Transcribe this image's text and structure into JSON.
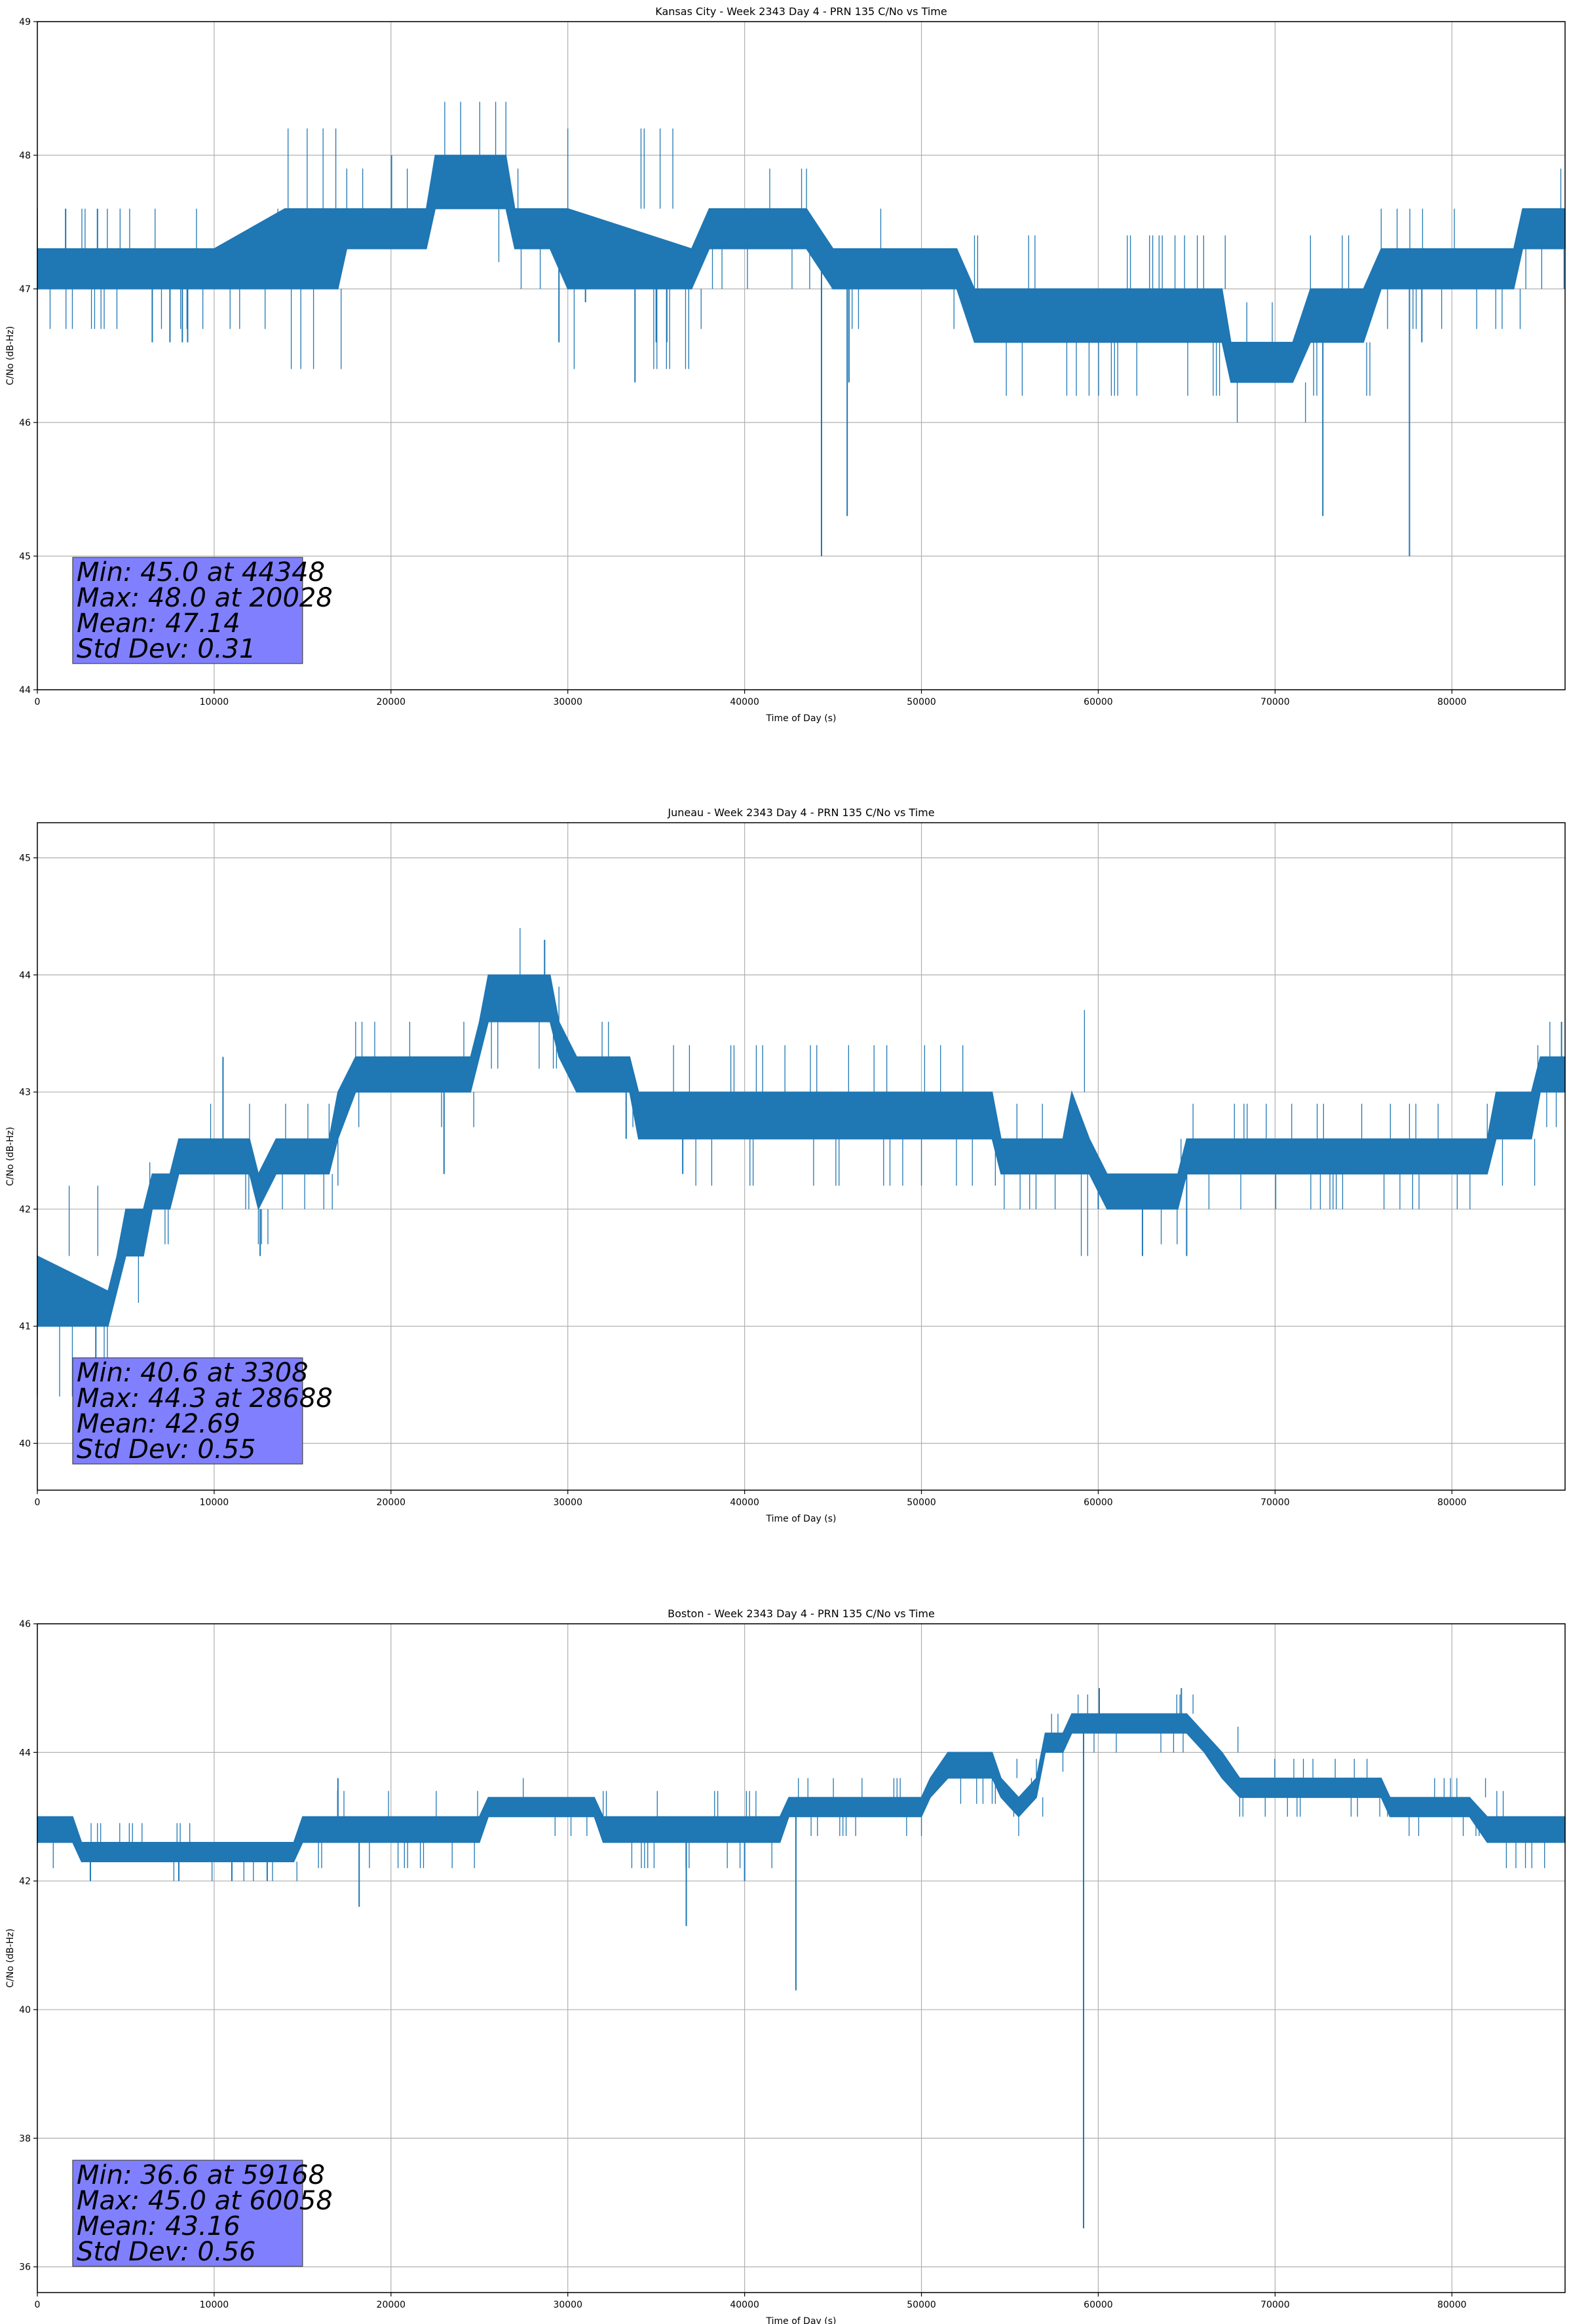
{
  "colors": {
    "series": "#1f77b4",
    "stats_box": "#8080ff",
    "grid": "#b0b0b0"
  },
  "chart_data": [
    {
      "type": "line",
      "title": "Kansas City - Week 2343 Day 4 - PRN 135 C/No vs Time",
      "xlabel": "Time of Day (s)",
      "ylabel": "C/No (dB-Hz)",
      "xlim": [
        0,
        86400
      ],
      "ylim": [
        44,
        49
      ],
      "xticks": [
        0,
        10000,
        20000,
        30000,
        40000,
        50000,
        60000,
        70000,
        80000
      ],
      "yticks": [
        44,
        45,
        46,
        47,
        48,
        49
      ],
      "grid": true,
      "stats": [
        "Min: 45.0 at 44348",
        "Max: 48.0 at 20028",
        "Mean: 47.14",
        "Std Dev: 0.31"
      ],
      "series": [
        {
          "band": [
            {
              "x": 0,
              "lo": 47.0,
              "hi": 47.3
            },
            {
              "x": 10000,
              "lo": 47.0,
              "hi": 47.3
            },
            {
              "x": 14000,
              "lo": 47.0,
              "hi": 47.6
            },
            {
              "x": 17000,
              "lo": 47.0,
              "hi": 47.6
            },
            {
              "x": 17500,
              "lo": 47.3,
              "hi": 47.6
            },
            {
              "x": 22000,
              "lo": 47.3,
              "hi": 47.6
            },
            {
              "x": 22500,
              "lo": 47.6,
              "hi": 48.0
            },
            {
              "x": 26500,
              "lo": 47.6,
              "hi": 48.0
            },
            {
              "x": 27000,
              "lo": 47.3,
              "hi": 47.6
            },
            {
              "x": 29000,
              "lo": 47.3,
              "hi": 47.6
            },
            {
              "x": 30000,
              "lo": 47.0,
              "hi": 47.6
            },
            {
              "x": 37000,
              "lo": 47.0,
              "hi": 47.3
            },
            {
              "x": 38000,
              "lo": 47.3,
              "hi": 47.6
            },
            {
              "x": 43500,
              "lo": 47.3,
              "hi": 47.6
            },
            {
              "x": 45000,
              "lo": 47.0,
              "hi": 47.3
            },
            {
              "x": 52000,
              "lo": 47.0,
              "hi": 47.3
            },
            {
              "x": 53000,
              "lo": 46.6,
              "hi": 47.0
            },
            {
              "x": 67000,
              "lo": 46.6,
              "hi": 47.0
            },
            {
              "x": 67500,
              "lo": 46.3,
              "hi": 46.6
            },
            {
              "x": 71000,
              "lo": 46.3,
              "hi": 46.6
            },
            {
              "x": 72000,
              "lo": 46.6,
              "hi": 47.0
            },
            {
              "x": 75000,
              "lo": 46.6,
              "hi": 47.0
            },
            {
              "x": 76000,
              "lo": 47.0,
              "hi": 47.3
            },
            {
              "x": 83500,
              "lo": 47.0,
              "hi": 47.3
            },
            {
              "x": 84000,
              "lo": 47.3,
              "hi": 47.6
            },
            {
              "x": 86400,
              "lo": 47.3,
              "hi": 47.6
            }
          ],
          "spikes": [
            {
              "x": 1600,
              "y": 47.6
            },
            {
              "x": 3400,
              "y": 47.6
            },
            {
              "x": 6500,
              "y": 46.6
            },
            {
              "x": 7500,
              "y": 46.6
            },
            {
              "x": 8200,
              "y": 46.6
            },
            {
              "x": 8500,
              "y": 46.6
            },
            {
              "x": 20028,
              "y": 48.0
            },
            {
              "x": 29500,
              "y": 46.6
            },
            {
              "x": 31000,
              "y": 46.9
            },
            {
              "x": 33800,
              "y": 46.3
            },
            {
              "x": 35000,
              "y": 46.6
            },
            {
              "x": 35600,
              "y": 46.6
            },
            {
              "x": 44348,
              "y": 45.0
            },
            {
              "x": 45800,
              "y": 45.3
            },
            {
              "x": 45900,
              "y": 46.3
            },
            {
              "x": 69000,
              "y": 46.6
            },
            {
              "x": 72700,
              "y": 45.3
            },
            {
              "x": 77600,
              "y": 45.0
            },
            {
              "x": 78300,
              "y": 46.6
            }
          ]
        }
      ]
    },
    {
      "type": "line",
      "title": "Juneau - Week 2343 Day 4 - PRN 135 C/No vs Time",
      "xlabel": "Time of Day (s)",
      "ylabel": "C/No (dB-Hz)",
      "xlim": [
        0,
        86400
      ],
      "ylim": [
        39.6,
        45.3
      ],
      "xticks": [
        0,
        10000,
        20000,
        30000,
        40000,
        50000,
        60000,
        70000,
        80000
      ],
      "yticks": [
        40,
        41,
        42,
        43,
        44,
        45
      ],
      "grid": true,
      "stats": [
        "Min: 40.6 at 3308",
        "Max: 44.3 at 28688",
        "Mean: 42.69",
        "Std Dev: 0.55"
      ],
      "series": [
        {
          "band": [
            {
              "x": 0,
              "lo": 41.0,
              "hi": 41.6
            },
            {
              "x": 4000,
              "lo": 41.0,
              "hi": 41.3
            },
            {
              "x": 4500,
              "lo": 41.3,
              "hi": 41.6
            },
            {
              "x": 5000,
              "lo": 41.6,
              "hi": 42.0
            },
            {
              "x": 6000,
              "lo": 41.6,
              "hi": 42.0
            },
            {
              "x": 6500,
              "lo": 42.0,
              "hi": 42.3
            },
            {
              "x": 7500,
              "lo": 42.0,
              "hi": 42.3
            },
            {
              "x": 8000,
              "lo": 42.3,
              "hi": 42.6
            },
            {
              "x": 12000,
              "lo": 42.3,
              "hi": 42.6
            },
            {
              "x": 12500,
              "lo": 42.0,
              "hi": 42.3
            },
            {
              "x": 13500,
              "lo": 42.3,
              "hi": 42.6
            },
            {
              "x": 16500,
              "lo": 42.3,
              "hi": 42.6
            },
            {
              "x": 17000,
              "lo": 42.6,
              "hi": 43.0
            },
            {
              "x": 18000,
              "lo": 43.0,
              "hi": 43.3
            },
            {
              "x": 24500,
              "lo": 43.0,
              "hi": 43.3
            },
            {
              "x": 25000,
              "lo": 43.3,
              "hi": 43.6
            },
            {
              "x": 25500,
              "lo": 43.6,
              "hi": 44.0
            },
            {
              "x": 29000,
              "lo": 43.6,
              "hi": 44.0
            },
            {
              "x": 29500,
              "lo": 43.3,
              "hi": 43.6
            },
            {
              "x": 30500,
              "lo": 43.0,
              "hi": 43.3
            },
            {
              "x": 33500,
              "lo": 43.0,
              "hi": 43.3
            },
            {
              "x": 34000,
              "lo": 42.6,
              "hi": 43.0
            },
            {
              "x": 50000,
              "lo": 42.6,
              "hi": 43.0
            },
            {
              "x": 54000,
              "lo": 42.6,
              "hi": 43.0
            },
            {
              "x": 54500,
              "lo": 42.3,
              "hi": 42.6
            },
            {
              "x": 58000,
              "lo": 42.3,
              "hi": 42.6
            },
            {
              "x": 58500,
              "lo": 42.3,
              "hi": 43.0
            },
            {
              "x": 59500,
              "lo": 42.3,
              "hi": 42.6
            },
            {
              "x": 60500,
              "lo": 42.0,
              "hi": 42.3
            },
            {
              "x": 64500,
              "lo": 42.0,
              "hi": 42.3
            },
            {
              "x": 65000,
              "lo": 42.3,
              "hi": 42.6
            },
            {
              "x": 82000,
              "lo": 42.3,
              "hi": 42.6
            },
            {
              "x": 82500,
              "lo": 42.6,
              "hi": 43.0
            },
            {
              "x": 84500,
              "lo": 42.6,
              "hi": 43.0
            },
            {
              "x": 85000,
              "lo": 43.0,
              "hi": 43.3
            },
            {
              "x": 86400,
              "lo": 43.0,
              "hi": 43.3
            }
          ],
          "spikes": [
            {
              "x": 3308,
              "y": 40.6
            },
            {
              "x": 10500,
              "y": 43.3
            },
            {
              "x": 12600,
              "y": 41.6
            },
            {
              "x": 23000,
              "y": 42.3
            },
            {
              "x": 28688,
              "y": 44.3
            },
            {
              "x": 33300,
              "y": 42.6
            },
            {
              "x": 36500,
              "y": 42.3
            },
            {
              "x": 60000,
              "y": 42.0
            },
            {
              "x": 62500,
              "y": 41.6
            },
            {
              "x": 65000,
              "y": 41.6
            },
            {
              "x": 86200,
              "y": 43.6
            }
          ]
        }
      ]
    },
    {
      "type": "line",
      "title": "Boston - Week 2343 Day 4 - PRN 135 C/No vs Time",
      "xlabel": "Time of Day (s)",
      "ylabel": "C/No (dB-Hz)",
      "xlim": [
        0,
        86400
      ],
      "ylim": [
        35.6,
        46
      ],
      "xticks": [
        0,
        10000,
        20000,
        30000,
        40000,
        50000,
        60000,
        70000,
        80000
      ],
      "yticks": [
        36,
        38,
        40,
        42,
        44,
        46
      ],
      "grid": true,
      "stats": [
        "Min: 36.6 at 59168",
        "Max: 45.0 at 60058",
        "Mean: 43.16",
        "Std Dev: 0.56"
      ],
      "series": [
        {
          "band": [
            {
              "x": 0,
              "lo": 42.6,
              "hi": 43.0
            },
            {
              "x": 2000,
              "lo": 42.6,
              "hi": 43.0
            },
            {
              "x": 2500,
              "lo": 42.3,
              "hi": 42.6
            },
            {
              "x": 14500,
              "lo": 42.3,
              "hi": 42.6
            },
            {
              "x": 15000,
              "lo": 42.6,
              "hi": 43.0
            },
            {
              "x": 25000,
              "lo": 42.6,
              "hi": 43.0
            },
            {
              "x": 25500,
              "lo": 43.0,
              "hi": 43.3
            },
            {
              "x": 31500,
              "lo": 43.0,
              "hi": 43.3
            },
            {
              "x": 32000,
              "lo": 42.6,
              "hi": 43.0
            },
            {
              "x": 42000,
              "lo": 42.6,
              "hi": 43.0
            },
            {
              "x": 42500,
              "lo": 43.0,
              "hi": 43.3
            },
            {
              "x": 50000,
              "lo": 43.0,
              "hi": 43.3
            },
            {
              "x": 50500,
              "lo": 43.3,
              "hi": 43.6
            },
            {
              "x": 51500,
              "lo": 43.6,
              "hi": 44.0
            },
            {
              "x": 54000,
              "lo": 43.6,
              "hi": 44.0
            },
            {
              "x": 54500,
              "lo": 43.3,
              "hi": 43.6
            },
            {
              "x": 55500,
              "lo": 43.0,
              "hi": 43.3
            },
            {
              "x": 56500,
              "lo": 43.3,
              "hi": 43.6
            },
            {
              "x": 57000,
              "lo": 44.0,
              "hi": 44.3
            },
            {
              "x": 58000,
              "lo": 44.0,
              "hi": 44.3
            },
            {
              "x": 58500,
              "lo": 44.3,
              "hi": 44.6
            },
            {
              "x": 65000,
              "lo": 44.3,
              "hi": 44.6
            },
            {
              "x": 66000,
              "lo": 44.0,
              "hi": 44.3
            },
            {
              "x": 67000,
              "lo": 43.6,
              "hi": 44.0
            },
            {
              "x": 68000,
              "lo": 43.3,
              "hi": 43.6
            },
            {
              "x": 76000,
              "lo": 43.3,
              "hi": 43.6
            },
            {
              "x": 76500,
              "lo": 43.0,
              "hi": 43.3
            },
            {
              "x": 81000,
              "lo": 43.0,
              "hi": 43.3
            },
            {
              "x": 82000,
              "lo": 42.6,
              "hi": 43.0
            },
            {
              "x": 86400,
              "lo": 42.6,
              "hi": 43.0
            }
          ],
          "spikes": [
            {
              "x": 3000,
              "y": 42.0
            },
            {
              "x": 8000,
              "y": 42.0
            },
            {
              "x": 11000,
              "y": 42.0
            },
            {
              "x": 13000,
              "y": 42.0
            },
            {
              "x": 17000,
              "y": 43.6
            },
            {
              "x": 18200,
              "y": 41.6
            },
            {
              "x": 36700,
              "y": 41.3
            },
            {
              "x": 40000,
              "y": 42.0
            },
            {
              "x": 42900,
              "y": 40.3
            },
            {
              "x": 59168,
              "y": 36.6
            },
            {
              "x": 60058,
              "y": 45.0
            },
            {
              "x": 64700,
              "y": 45.0
            }
          ]
        }
      ]
    }
  ]
}
